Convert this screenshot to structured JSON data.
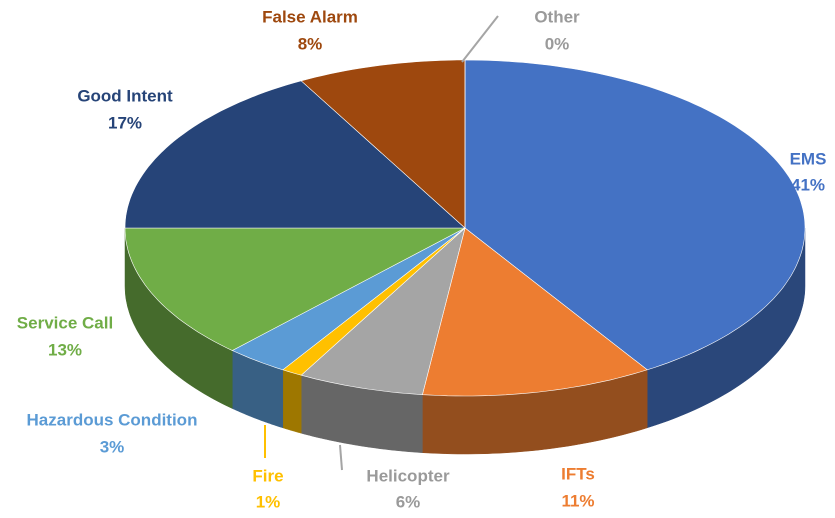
{
  "chart_data": {
    "type": "pie",
    "categories": [
      "EMS",
      "IFTs",
      "Helicopter",
      "Fire",
      "Hazardous Condition",
      "Service Call",
      "Good Intent",
      "False Alarm",
      "Other"
    ],
    "values": [
      41,
      11,
      6,
      1,
      3,
      13,
      17,
      8,
      0
    ],
    "value_labels": [
      "41%",
      "11%",
      "6%",
      "1%",
      "3%",
      "13%",
      "17%",
      "8%",
      "0%"
    ],
    "colors": [
      "#4472c4",
      "#ed7d31",
      "#a5a5a5",
      "#ffc000",
      "#5b9bd5",
      "#70ad47",
      "#264478",
      "#9e480e",
      "#636363"
    ]
  }
}
